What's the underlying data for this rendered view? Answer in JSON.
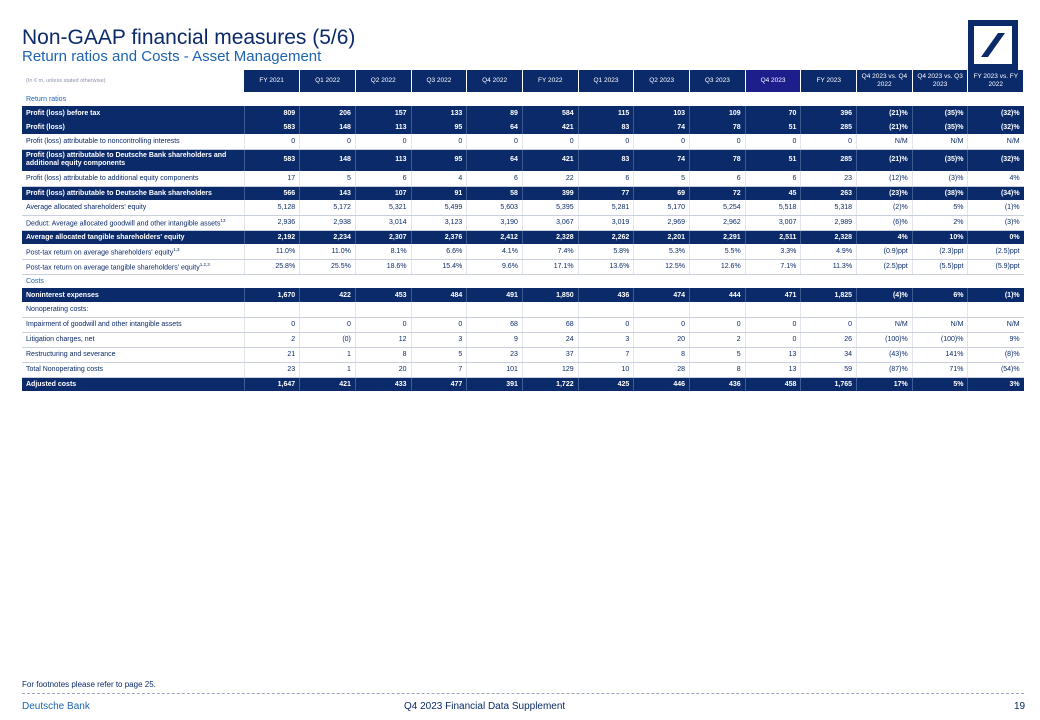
{
  "header": {
    "title": "Non-GAAP financial measures (5/6)",
    "subtitle": "Return ratios and Costs - Asset Management",
    "logo_icon": "deutsche-bank-slash-logo"
  },
  "table": {
    "unit_label": "(In € m, unless stated otherwise)",
    "columns": [
      "FY 2021",
      "Q1 2022",
      "Q2 2022",
      "Q3 2022",
      "Q4 2022",
      "FY 2022",
      "Q1 2023",
      "Q2 2023",
      "Q3 2023",
      "Q4 2023",
      "FY 2023",
      "Q4 2023 vs. Q4 2022",
      "Q4 2023 vs. Q3 2023",
      "FY 2023 vs. FY 2022"
    ],
    "rows": [
      {
        "type": "section",
        "label": "Return ratios"
      },
      {
        "type": "bold",
        "label": "Profit (loss) before tax",
        "values": [
          "809",
          "206",
          "157",
          "133",
          "89",
          "584",
          "115",
          "103",
          "109",
          "70",
          "396",
          "(21)%",
          "(35)%",
          "(32)%"
        ]
      },
      {
        "type": "bold",
        "label": "Profit (loss)",
        "values": [
          "583",
          "148",
          "113",
          "95",
          "64",
          "421",
          "83",
          "74",
          "78",
          "51",
          "285",
          "(21)%",
          "(35)%",
          "(32)%"
        ]
      },
      {
        "type": "norm",
        "label": "Profit (loss) attributable to noncontrolling interests",
        "values": [
          "0",
          "0",
          "0",
          "0",
          "0",
          "0",
          "0",
          "0",
          "0",
          "0",
          "0",
          "N/M",
          "N/M",
          "N/M"
        ]
      },
      {
        "type": "bold",
        "label": "Profit (loss) attributable to Deutsche Bank shareholders and additional equity components",
        "tall": true,
        "values": [
          "583",
          "148",
          "113",
          "95",
          "64",
          "421",
          "83",
          "74",
          "78",
          "51",
          "285",
          "(21)%",
          "(35)%",
          "(32)%"
        ]
      },
      {
        "type": "norm",
        "label": "Profit (loss) attributable to additional equity components",
        "values": [
          "17",
          "5",
          "6",
          "4",
          "6",
          "22",
          "6",
          "5",
          "6",
          "6",
          "23",
          "(12)%",
          "(3)%",
          "4%"
        ]
      },
      {
        "type": "bold",
        "label": "Profit (loss) attributable to Deutsche Bank shareholders",
        "values": [
          "566",
          "143",
          "107",
          "91",
          "58",
          "399",
          "77",
          "69",
          "72",
          "45",
          "263",
          "(23)%",
          "(38)%",
          "(34)%"
        ]
      },
      {
        "type": "norm",
        "label": "Average allocated shareholders' equity",
        "values": [
          "5,128",
          "5,172",
          "5,321",
          "5,499",
          "5,603",
          "5,395",
          "5,281",
          "5,170",
          "5,254",
          "5,518",
          "5,318",
          "(2)%",
          "5%",
          "(1)%"
        ]
      },
      {
        "type": "norm",
        "label": "Deduct: Average allocated goodwill and other intangible assets",
        "sup": "13",
        "values": [
          "2,936",
          "2,938",
          "3,014",
          "3,123",
          "3,190",
          "3,067",
          "3,019",
          "2,969",
          "2,962",
          "3,007",
          "2,989",
          "(6)%",
          "2%",
          "(3)%"
        ]
      },
      {
        "type": "bold",
        "label": "Average allocated tangible shareholders' equity",
        "values": [
          "2,192",
          "2,234",
          "2,307",
          "2,376",
          "2,412",
          "2,328",
          "2,262",
          "2,201",
          "2,291",
          "2,511",
          "2,328",
          "4%",
          "10%",
          "0%"
        ]
      },
      {
        "type": "norm",
        "label": "Post-tax return on average shareholders' equity",
        "sup": "1,3",
        "values": [
          "11.0%",
          "11.0%",
          "8.1%",
          "6.6%",
          "4.1%",
          "7.4%",
          "5.8%",
          "5.3%",
          "5.5%",
          "3.3%",
          "4.9%",
          "(0.9)ppt",
          "(2.3)ppt",
          "(2.5)ppt"
        ]
      },
      {
        "type": "norm",
        "label": "Post-tax return on average tangible shareholders' equity",
        "sup": "1,2,3",
        "values": [
          "25.8%",
          "25.5%",
          "18.6%",
          "15.4%",
          "9.6%",
          "17.1%",
          "13.6%",
          "12.5%",
          "12.6%",
          "7.1%",
          "11.3%",
          "(2.5)ppt",
          "(5.5)ppt",
          "(5.9)ppt"
        ]
      },
      {
        "type": "section",
        "label": "Costs"
      },
      {
        "type": "bold",
        "label": "Noninterest expenses",
        "values": [
          "1,670",
          "422",
          "453",
          "484",
          "491",
          "1,850",
          "436",
          "474",
          "444",
          "471",
          "1,825",
          "(4)%",
          "6%",
          "(1)%"
        ]
      },
      {
        "type": "norm",
        "label": "Nonoperating costs:",
        "values": [
          "",
          "",
          "",
          "",
          "",
          "",
          "",
          "",
          "",
          "",
          "",
          "",
          "",
          ""
        ]
      },
      {
        "type": "norm",
        "label": "Impairment of goodwill and other intangible assets",
        "indent": true,
        "values": [
          "0",
          "0",
          "0",
          "0",
          "68",
          "68",
          "0",
          "0",
          "0",
          "0",
          "0",
          "N/M",
          "N/M",
          "N/M"
        ]
      },
      {
        "type": "norm",
        "label": "Litigation charges, net",
        "indent": true,
        "values": [
          "2",
          "(0)",
          "12",
          "3",
          "9",
          "24",
          "3",
          "20",
          "2",
          "0",
          "26",
          "(100)%",
          "(100)%",
          "9%"
        ]
      },
      {
        "type": "norm",
        "label": "Restructuring and severance",
        "indent": true,
        "values": [
          "21",
          "1",
          "8",
          "5",
          "23",
          "37",
          "7",
          "8",
          "5",
          "13",
          "34",
          "(43)%",
          "141%",
          "(8)%"
        ]
      },
      {
        "type": "norm",
        "label": "Total Nonoperating costs",
        "values": [
          "23",
          "1",
          "20",
          "7",
          "101",
          "129",
          "10",
          "28",
          "8",
          "13",
          "59",
          "(87)%",
          "71%",
          "(54)%"
        ]
      },
      {
        "type": "bold",
        "label": "Adjusted costs",
        "values": [
          "1,647",
          "421",
          "433",
          "477",
          "391",
          "1,722",
          "425",
          "446",
          "436",
          "458",
          "1,765",
          "17%",
          "5%",
          "3%"
        ]
      }
    ]
  },
  "footnote": "For footnotes please refer to page 25.",
  "footer": {
    "brand": "Deutsche Bank",
    "document": "Q4 2023 Financial Data Supplement",
    "page": "19"
  }
}
